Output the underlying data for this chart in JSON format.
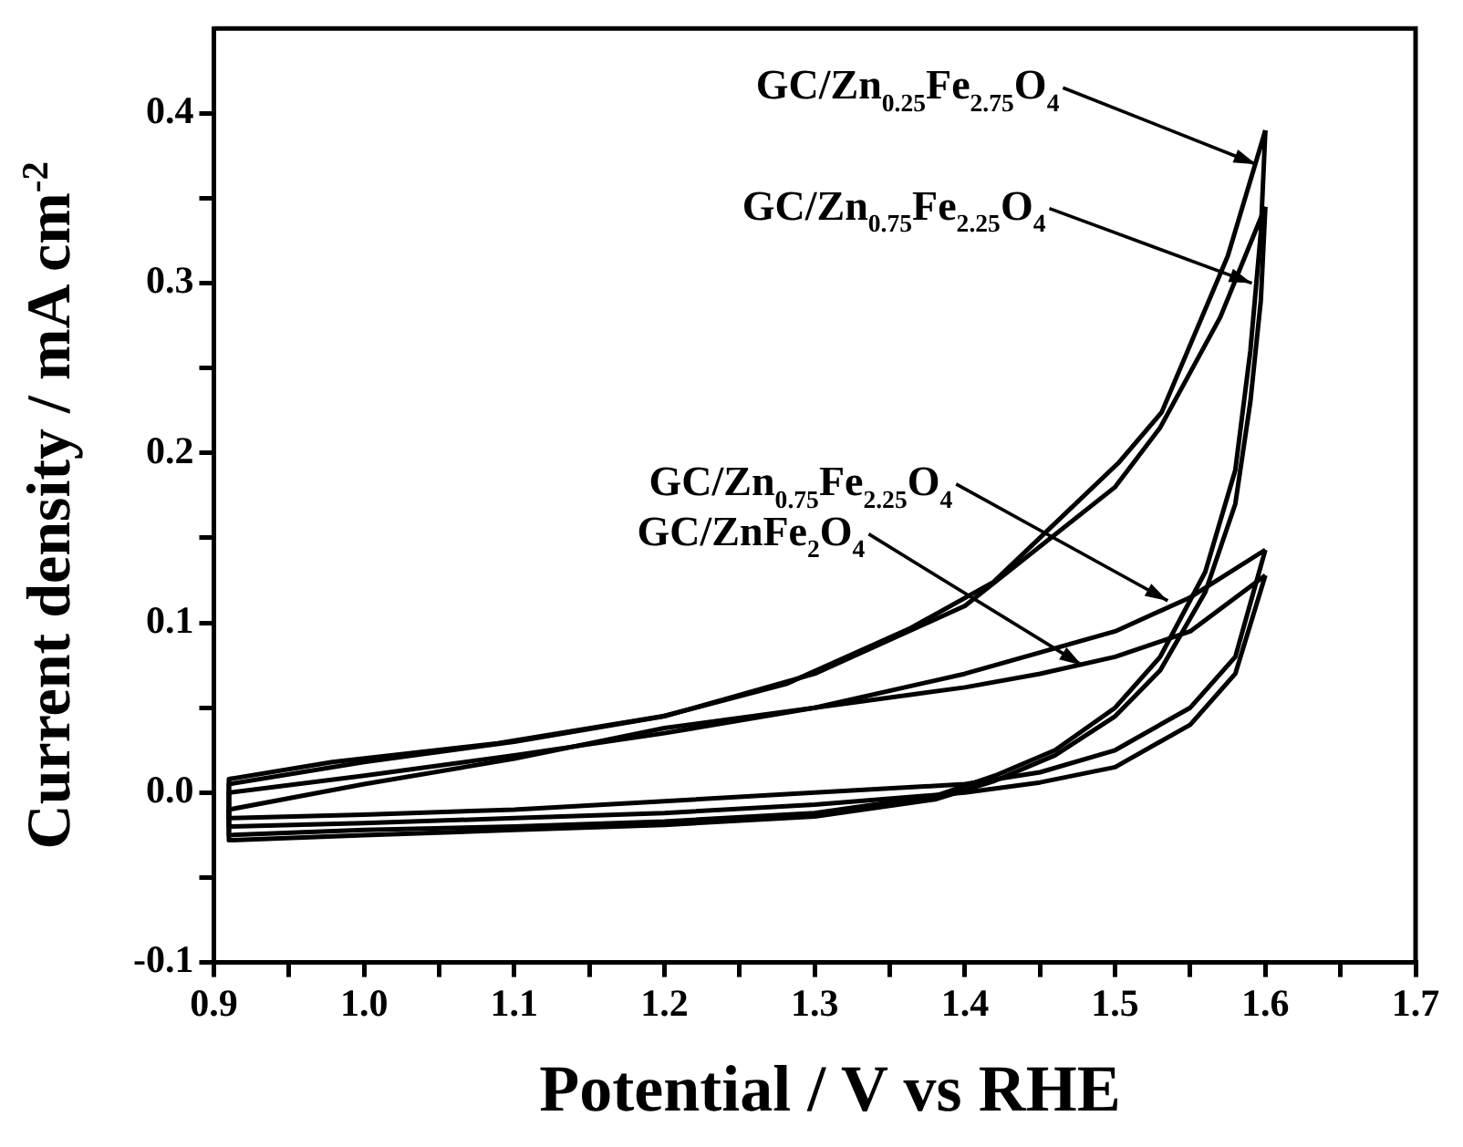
{
  "chart_data": {
    "type": "line",
    "xlabel": "Potential / V vs RHE",
    "ylabel": "Current density / mA cm$^{-2}$",
    "xlim": [
      0.9,
      1.7
    ],
    "ylim": [
      -0.1,
      0.45
    ],
    "xticks": [
      0.9,
      {
        "value": 0.95,
        "label": null
      },
      "1.0",
      {
        "value": 1.05,
        "label": null
      },
      1.1,
      {
        "value": 1.15,
        "label": null
      },
      1.2,
      {
        "value": 1.25,
        "label": null
      },
      1.3,
      {
        "value": 1.35,
        "label": null
      },
      1.4,
      {
        "value": 1.45,
        "label": null
      },
      1.5,
      {
        "value": 1.55,
        "label": null
      },
      1.6,
      {
        "value": 1.65,
        "label": null
      },
      1.7
    ],
    "yticks": [
      {
        "value": -0.1,
        "label": "-0.1"
      },
      {
        "value": -0.05,
        "label": null
      },
      {
        "value": 0,
        "label": "0.0"
      },
      {
        "value": 0.05,
        "label": null
      },
      0.1,
      {
        "value": 0.15,
        "label": null
      },
      0.2,
      {
        "value": 0.25,
        "label": null
      },
      0.3,
      {
        "value": 0.35,
        "label": null
      },
      0.4
    ],
    "grid": false,
    "legend": false,
    "series": [
      {
        "color": "#000000",
        "x": [
          0.91,
          1.0,
          1.1,
          1.2,
          1.3,
          1.38,
          1.42,
          1.46,
          1.5,
          1.53,
          1.56,
          1.58,
          1.59,
          1.597,
          1.6
        ],
        "values": [
          -0.025,
          -0.022,
          -0.02,
          -0.017,
          -0.012,
          -0.002,
          0.01,
          0.025,
          0.05,
          0.08,
          0.13,
          0.19,
          0.26,
          0.33,
          0.39
        ]
      },
      {
        "color": "#000000",
        "x": [
          1.6,
          1.575,
          1.531,
          1.502,
          1.419,
          1.364,
          1.281,
          1.199,
          1.089,
          0.979,
          0.91,
          0.91
        ],
        "values": [
          0.39,
          0.316,
          0.224,
          0.194,
          0.124,
          0.097,
          0.064,
          0.045,
          0.029,
          0.018,
          0.008,
          -0.025
        ]
      },
      {
        "color": "#000000",
        "x": [
          0.91,
          1.0,
          1.1,
          1.2,
          1.3,
          1.38,
          1.42,
          1.46,
          1.5,
          1.53,
          1.56,
          1.58,
          1.59,
          1.597,
          1.6
        ],
        "values": [
          -0.028,
          -0.025,
          -0.022,
          -0.019,
          -0.014,
          -0.004,
          0.007,
          0.022,
          0.045,
          0.072,
          0.118,
          0.17,
          0.23,
          0.29,
          0.345
        ]
      },
      {
        "color": "#000000",
        "x": [
          1.6,
          1.57,
          1.53,
          1.5,
          1.4,
          1.3,
          1.2,
          1.1,
          1.0,
          0.91,
          0.91
        ],
        "values": [
          0.345,
          0.28,
          0.215,
          0.18,
          0.11,
          0.07,
          0.045,
          0.03,
          0.018,
          0.005,
          -0.028
        ]
      },
      {
        "color": "#000000",
        "x": [
          0.91,
          1.0,
          1.1,
          1.2,
          1.3,
          1.4,
          1.45,
          1.5,
          1.55,
          1.58,
          1.6
        ],
        "values": [
          -0.015,
          -0.013,
          -0.01,
          -0.005,
          0.0,
          0.005,
          0.012,
          0.025,
          0.05,
          0.08,
          0.143
        ]
      },
      {
        "color": "#000000",
        "x": [
          1.6,
          1.55,
          1.5,
          1.4,
          1.3,
          1.2,
          1.1,
          1.0,
          0.91,
          0.91
        ],
        "values": [
          0.143,
          0.115,
          0.095,
          0.07,
          0.05,
          0.035,
          0.022,
          0.01,
          0.0,
          -0.015
        ]
      },
      {
        "color": "#000000",
        "x": [
          0.91,
          1.0,
          1.1,
          1.2,
          1.3,
          1.4,
          1.45,
          1.5,
          1.55,
          1.58,
          1.6
        ],
        "values": [
          -0.02,
          -0.018,
          -0.015,
          -0.012,
          -0.007,
          0.0,
          0.006,
          0.015,
          0.04,
          0.07,
          0.128
        ]
      },
      {
        "color": "#000000",
        "x": [
          1.6,
          1.55,
          1.5,
          1.45,
          1.4,
          1.3,
          1.2,
          1.1,
          1.0,
          0.91,
          0.91
        ],
        "values": [
          0.128,
          0.095,
          0.08,
          0.07,
          0.062,
          0.05,
          0.038,
          0.02,
          0.005,
          -0.01,
          -0.02
        ]
      }
    ],
    "annotations": [
      {
        "text": "GC/Zn$_{0.25}$Fe$_{2.75}$O$_{4}$",
        "x": 1.594,
        "y": 0.37
      },
      {
        "text": "GC/Zn$_{0.75}$Fe$_{2.25}$O$_{4}$",
        "x": 1.591,
        "y": 0.3
      },
      {
        "text": "GC/Zn$_{0.75}$Fe$_{2.25}$O$_{4}$",
        "x": 1.535,
        "y": 0.113
      },
      {
        "text": "GC/ZnFe$_{2}$O$_{4}$",
        "x": 1.478,
        "y": 0.075
      }
    ]
  }
}
